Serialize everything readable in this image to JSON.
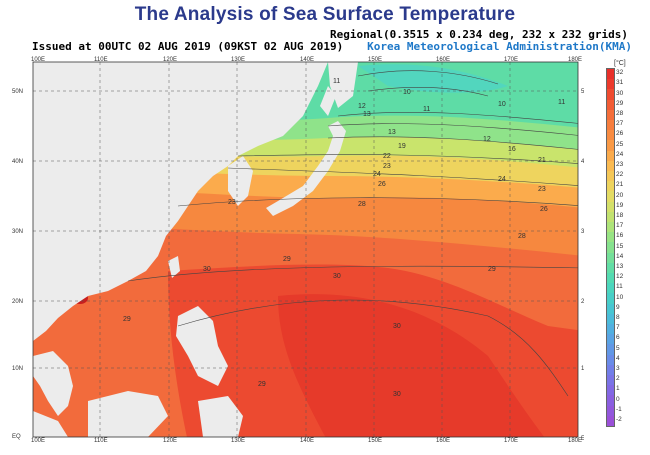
{
  "header": {
    "title": "The Analysis of Sea Surface Temperature",
    "regional": "Regional(0.3515 x 0.234 deg, 232 x 232 grids)",
    "issued": "Issued at    00UTC 02 AUG 2019 (09KST 02 AUG 2019)",
    "agency": "Korea Meteorological Administration(KMA)"
  },
  "map": {
    "lon_labels": [
      "100E",
      "110E",
      "120E",
      "130E",
      "140E",
      "150E",
      "160E",
      "170E",
      "180E"
    ],
    "lat_labels": [
      "50N",
      "40N",
      "30N",
      "20N",
      "10N",
      "EQ"
    ],
    "isotherm_labels": [
      "10",
      "11",
      "12",
      "13",
      "16",
      "19",
      "21",
      "22",
      "23",
      "24",
      "26",
      "28",
      "29",
      "30"
    ],
    "colors": {
      "land": "#ececec",
      "grid": "#555555"
    }
  },
  "colorbar": {
    "unit": "[°C]",
    "values": [
      "32",
      "31",
      "30",
      "29",
      "28",
      "27",
      "26",
      "25",
      "24",
      "23",
      "22",
      "21",
      "20",
      "19",
      "18",
      "17",
      "16",
      "15",
      "14",
      "13",
      "12",
      "11",
      "10",
      "9",
      "8",
      "7",
      "6",
      "5",
      "4",
      "3",
      "2",
      "1",
      "0",
      "-1",
      "-2"
    ],
    "colors": [
      "#e8302a",
      "#ec3a2c",
      "#ef4b30",
      "#f25c35",
      "#f56e3a",
      "#f77e3e",
      "#f98c42",
      "#fa9a46",
      "#fbab4c",
      "#fbbb52",
      "#f5c858",
      "#eed45e",
      "#e4dc64",
      "#d4e06a",
      "#c2e270",
      "#aee47a",
      "#98e484",
      "#86e28e",
      "#74e09a",
      "#62dea6",
      "#54dbb2",
      "#4cd6be",
      "#48cfc8",
      "#48c6d2",
      "#4cbcda",
      "#52b0e0",
      "#5aa4e4",
      "#6298e6",
      "#6a8ce8",
      "#727fe8",
      "#7a74e6",
      "#8269e4",
      "#8a60e0",
      "#9258dc",
      "#9a50d8"
    ]
  }
}
